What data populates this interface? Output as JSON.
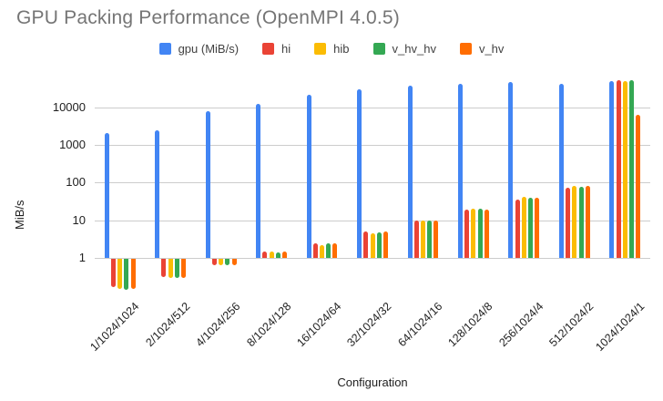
{
  "title": "GPU Packing Performance (OpenMPI 4.0.5)",
  "chart_data": {
    "type": "bar",
    "title": "GPU Packing Performance (OpenMPI 4.0.5)",
    "xlabel": "Configuration",
    "ylabel": "MiB/s",
    "y_scale": "log",
    "y_ticks": [
      1,
      10,
      100,
      1000,
      10000
    ],
    "ylim": [
      0.1,
      60000
    ],
    "grid": true,
    "legend_position": "top",
    "categories": [
      "1/1024/1024",
      "2/1024/512",
      "4/1024/256",
      "8/1024/128",
      "16/1024/64",
      "32/1024/32",
      "64/1024/16",
      "128/1024/8",
      "256/1024/4",
      "512/1024/2",
      "1024/1024/1"
    ],
    "series": [
      {
        "name": "gpu (MiB/s)",
        "color": "#4285F4",
        "values": [
          2100,
          2500,
          8000,
          12500,
          22000,
          30000,
          38000,
          42000,
          46000,
          41000,
          50000
        ]
      },
      {
        "name": "hi",
        "color": "#EA4335",
        "values": [
          0.17,
          0.31,
          0.65,
          1.5,
          2.4,
          5.0,
          10,
          19,
          36,
          75,
          53000
        ]
      },
      {
        "name": "hib",
        "color": "#FBBC04",
        "values": [
          0.15,
          0.3,
          0.65,
          1.45,
          2.2,
          4.4,
          10,
          20,
          42,
          83,
          49000
        ]
      },
      {
        "name": "v_hv_hv",
        "color": "#34A853",
        "values": [
          0.14,
          0.3,
          0.63,
          1.4,
          2.4,
          4.8,
          10,
          20,
          40,
          76,
          52000
        ]
      },
      {
        "name": "v_hv",
        "color": "#FF6D01",
        "values": [
          0.15,
          0.29,
          0.63,
          1.45,
          2.4,
          5.0,
          10,
          19.5,
          40,
          80,
          6300
        ]
      }
    ]
  }
}
